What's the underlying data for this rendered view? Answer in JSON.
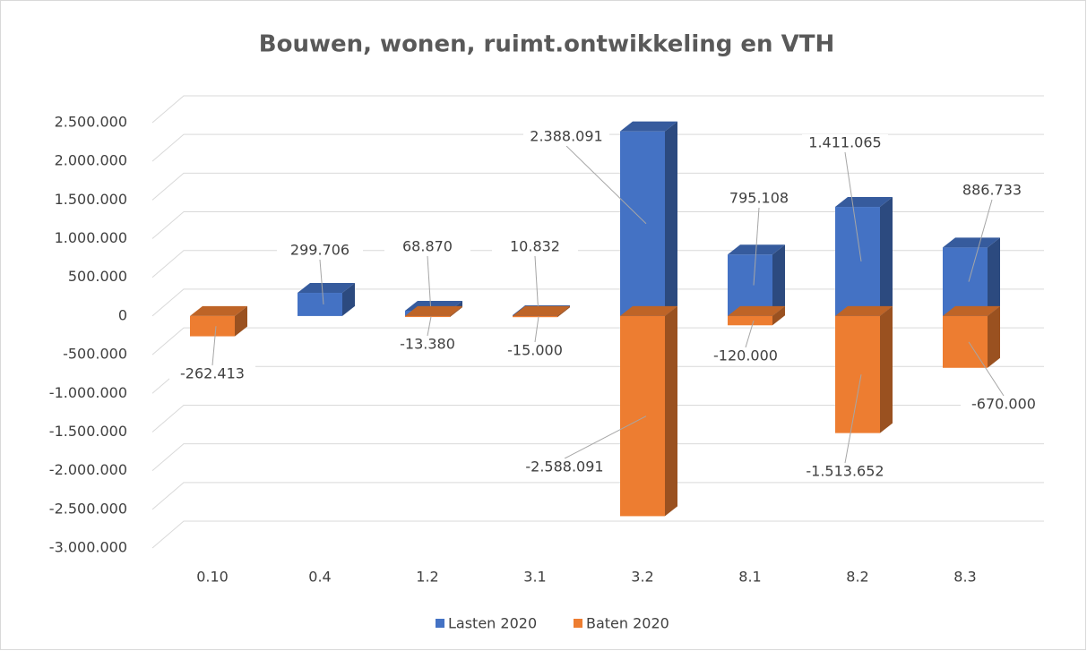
{
  "chart_data": {
    "type": "bar3d",
    "title": "Bouwen, wonen, ruimt.ontwikkeling en VTH",
    "categories": [
      "0.10",
      "0.4",
      "1.2",
      "3.1",
      "3.2",
      "8.1",
      "8.2",
      "8.3"
    ],
    "series": [
      {
        "name": "Lasten 2020",
        "color": "#4472c4",
        "values": [
          null,
          299706,
          68870,
          10832,
          2388091,
          795108,
          1411065,
          886733
        ],
        "value_labels": [
          null,
          "299.706",
          "68.870",
          "10.832",
          "2.388.091",
          "795.108",
          "1.411.065",
          "886.733"
        ]
      },
      {
        "name": "Baten 2020",
        "color": "#ed7d31",
        "values": [
          -262413,
          null,
          -13380,
          -15000,
          -2588091,
          -120000,
          -1513652,
          -670000
        ],
        "value_labels": [
          "-262.413",
          null,
          "-13.380",
          "-15.000",
          "-2.588.091",
          "-120.000",
          "-1.513.652",
          "-670.000"
        ]
      }
    ],
    "ylim": [
      -3000000,
      2500000
    ],
    "yticks": [
      {
        "value": -3000000,
        "label": "-3.000.000"
      },
      {
        "value": -2500000,
        "label": "-2.500.000"
      },
      {
        "value": -2000000,
        "label": "-2.000.000"
      },
      {
        "value": -1500000,
        "label": "-1.500.000"
      },
      {
        "value": -1000000,
        "label": "-1.000.000"
      },
      {
        "value": -500000,
        "label": "-500.000"
      },
      0,
      {
        "value": 500000,
        "label": "500.000"
      },
      {
        "value": 1000000,
        "label": "1.000.000"
      },
      {
        "value": 1500000,
        "label": "1.500.000"
      },
      {
        "value": 2000000,
        "label": "2.000.000"
      },
      {
        "value": 2500000,
        "label": "2.500.000"
      }
    ],
    "grid": true,
    "legend": "bottom"
  }
}
